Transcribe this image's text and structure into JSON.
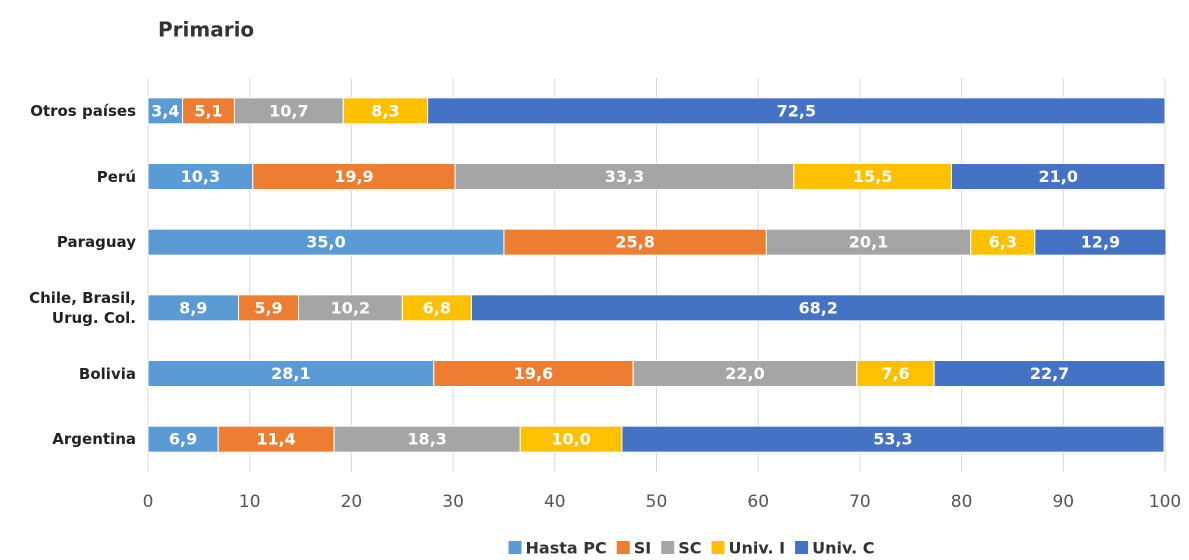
{
  "chart_data": {
    "type": "stacked_bar",
    "orientation": "horizontal",
    "title": "Primario",
    "categories": [
      "Otros países",
      "Perú",
      "Paraguay",
      "Chile, Brasil, Urug. Col.",
      "Bolivia",
      "Argentina"
    ],
    "series": [
      {
        "name": "Hasta PC",
        "color": "#5b9bd5",
        "values": [
          3.4,
          10.3,
          35.0,
          8.9,
          28.1,
          6.9
        ],
        "value_labels": [
          "3,4",
          "10,3",
          "35,0",
          "8,9",
          "28,1",
          "6,9"
        ]
      },
      {
        "name": "SI",
        "color": "#ed7d31",
        "values": [
          5.1,
          19.9,
          25.8,
          5.9,
          19.6,
          11.4
        ],
        "value_labels": [
          "5,1",
          "19,9",
          "25,8",
          "5,9",
          "19,6",
          "11,4"
        ]
      },
      {
        "name": "SC",
        "color": "#a5a5a5",
        "values": [
          10.7,
          33.3,
          20.1,
          10.2,
          22.0,
          18.3
        ],
        "value_labels": [
          "10,7",
          "33,3",
          "20,1",
          "10,2",
          "22,0",
          "18,3"
        ]
      },
      {
        "name": "Univ. I",
        "color": "#ffc000",
        "values": [
          8.3,
          15.5,
          6.3,
          6.8,
          7.6,
          10.0
        ],
        "value_labels": [
          "8,3",
          "15,5",
          "6,3",
          "6,8",
          "7,6",
          "10,0"
        ]
      },
      {
        "name": "Univ. C",
        "color": "#4472c4",
        "values": [
          72.5,
          21.0,
          12.9,
          68.2,
          22.7,
          53.3
        ],
        "value_labels": [
          "72,5",
          "21,0",
          "12,9",
          "68,2",
          "22,7",
          "53,3"
        ]
      }
    ],
    "xlim": [
      0,
      100
    ],
    "xticks": [
      0,
      10,
      20,
      30,
      40,
      50,
      60,
      70,
      80,
      90,
      100
    ],
    "grid": true,
    "legend": "bottom"
  }
}
